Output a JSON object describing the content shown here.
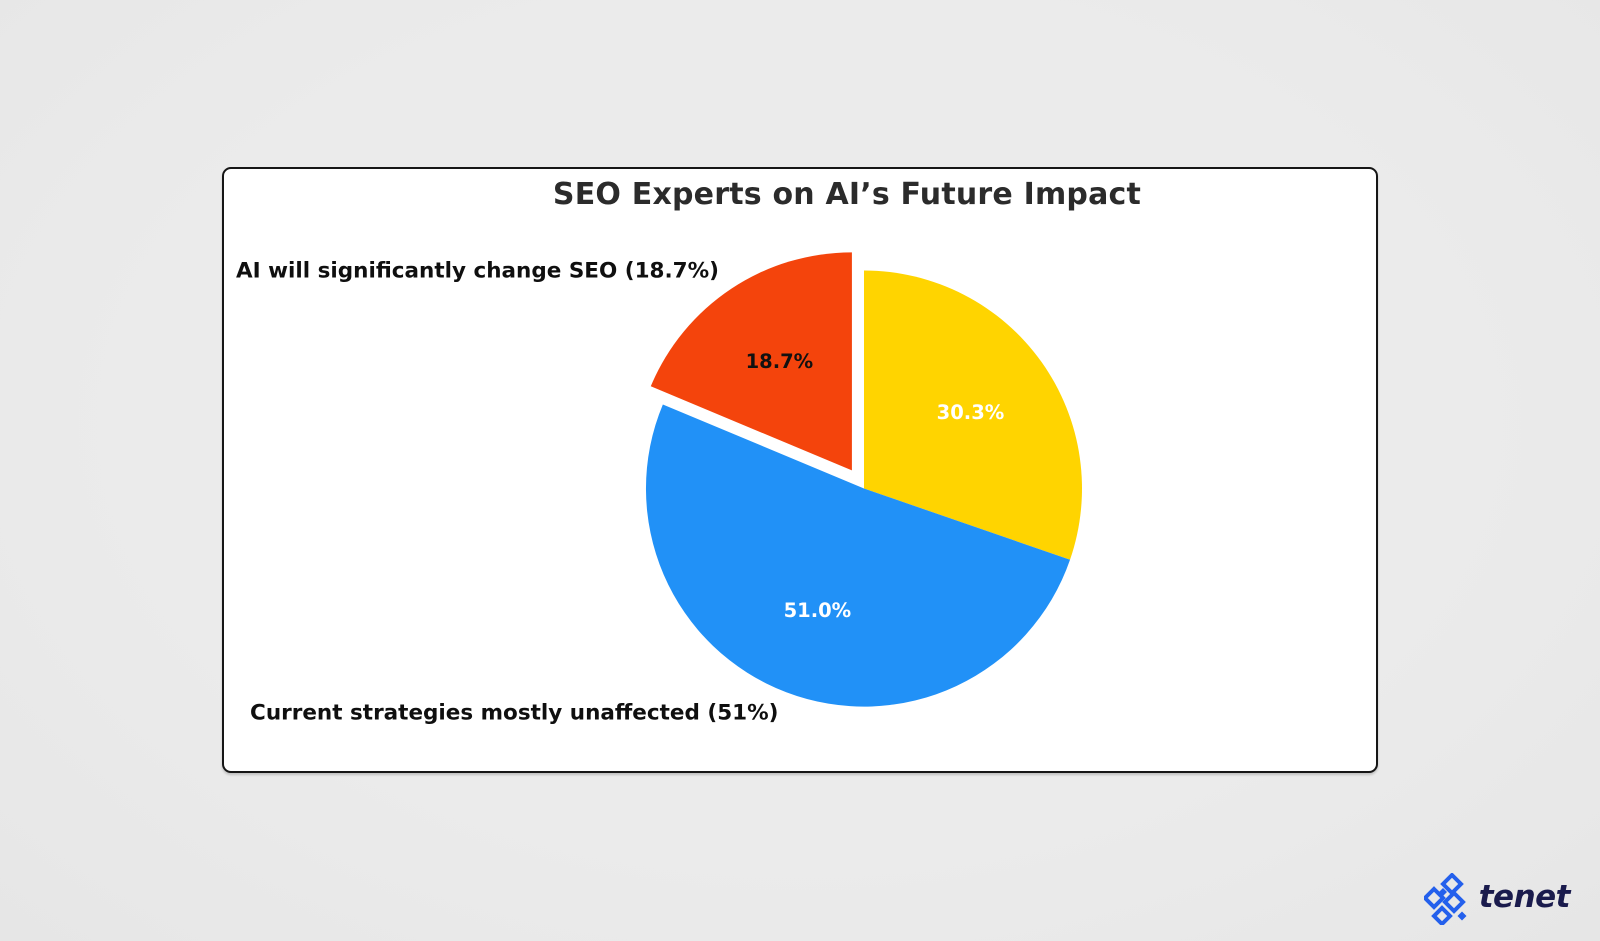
{
  "chart_data": {
    "type": "pie",
    "title": "SEO Experts on AI’s Future Impact",
    "start_angle": 90,
    "clockwise": true,
    "pct_distance": 0.6,
    "label_distance": 1.1,
    "legend_position": "none",
    "grid": false,
    "label_color": "#0f0f0f",
    "slices": [
      {
        "label": "",
        "value": 30.3,
        "color": "#FFD400",
        "pct_label": "30.3%",
        "pct_label_color": "#ffffff",
        "explode": 0
      },
      {
        "label": "Current strategies mostly unaffected (51%)",
        "value": 51.0,
        "color": "#2191F7",
        "pct_label": "51.0%",
        "pct_label_color": "#ffffff",
        "explode": 0
      },
      {
        "label": "AI will significantly change SEO (18.7%)",
        "value": 18.7,
        "color": "#F4440C",
        "pct_label": "18.7%",
        "pct_label_color": "#111111",
        "explode": 0.1
      }
    ]
  },
  "card": {
    "background": "#ffffff",
    "border_color": "#161616"
  },
  "page": {
    "background": "#eaeaea"
  },
  "branding": {
    "logo_text": "tenet",
    "logo_mark_color": "#2460EC",
    "logo_text_color": "#1A1B4D"
  }
}
